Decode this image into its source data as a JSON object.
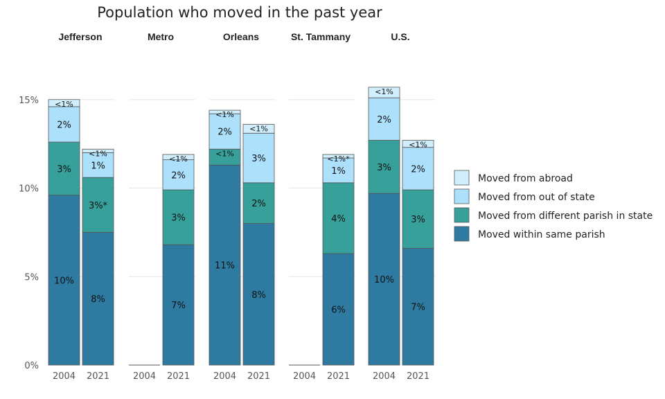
{
  "chart_data": {
    "type": "bar",
    "stacked": true,
    "title": "Population who moved in the past year",
    "facets": [
      "Jefferson",
      "Metro",
      "Orleans",
      "St. Tammany",
      "U.S."
    ],
    "years": [
      "2004",
      "2021"
    ],
    "ylim": [
      0,
      15
    ],
    "yticks": [
      0,
      5,
      10,
      15
    ],
    "ytick_labels": [
      "0%",
      "5%",
      "10%",
      "15%"
    ],
    "grid": true,
    "legend_position": "right",
    "series": [
      {
        "name": "Moved within same parish",
        "color": "#2e7aa1"
      },
      {
        "name": "Moved from different parish in state",
        "color": "#37a09a"
      },
      {
        "name": "Moved from out of state",
        "color": "#ace0fb"
      },
      {
        "name": "Moved from abroad",
        "color": "#d0eefc"
      }
    ],
    "bars": [
      {
        "facet": "Jefferson",
        "year": "2004",
        "values": [
          9.6,
          3.0,
          2.0,
          0.4
        ],
        "labels": [
          "10%",
          "3%",
          "2%",
          "<1%"
        ]
      },
      {
        "facet": "Jefferson",
        "year": "2021",
        "values": [
          7.5,
          3.1,
          1.4,
          0.2
        ],
        "labels": [
          "8%",
          "3%*",
          "1%",
          "<1%"
        ]
      },
      {
        "facet": "Metro",
        "year": "2004",
        "values": [
          0,
          0,
          0,
          0
        ],
        "labels": [
          "",
          "",
          "",
          ""
        ]
      },
      {
        "facet": "Metro",
        "year": "2021",
        "values": [
          6.8,
          3.1,
          1.7,
          0.3
        ],
        "labels": [
          "7%",
          "3%",
          "2%",
          "<1%"
        ]
      },
      {
        "facet": "Orleans",
        "year": "2004",
        "values": [
          11.3,
          0.9,
          2.0,
          0.2
        ],
        "labels": [
          "11%",
          "<1%",
          "2%",
          "<1%"
        ]
      },
      {
        "facet": "Orleans",
        "year": "2021",
        "values": [
          8.0,
          2.3,
          2.8,
          0.5
        ],
        "labels": [
          "8%",
          "2%",
          "3%",
          "<1%"
        ]
      },
      {
        "facet": "St. Tammany",
        "year": "2004",
        "values": [
          0,
          0,
          0,
          0
        ],
        "labels": [
          "",
          "",
          "",
          ""
        ]
      },
      {
        "facet": "St. Tammany",
        "year": "2021",
        "values": [
          6.3,
          4.0,
          1.4,
          0.2
        ],
        "labels": [
          "6%",
          "4%",
          "1%",
          "<1%*"
        ]
      },
      {
        "facet": "U.S.",
        "year": "2004",
        "values": [
          9.7,
          3.0,
          2.4,
          0.6
        ],
        "labels": [
          "10%",
          "3%",
          "2%",
          "<1%"
        ]
      },
      {
        "facet": "U.S.",
        "year": "2021",
        "values": [
          6.6,
          3.3,
          2.4,
          0.4
        ],
        "labels": [
          "7%",
          "3%",
          "2%",
          "<1%"
        ]
      }
    ],
    "legend_order": [
      "Moved from abroad",
      "Moved from out of state",
      "Moved from different parish in state",
      "Moved within same parish"
    ]
  }
}
